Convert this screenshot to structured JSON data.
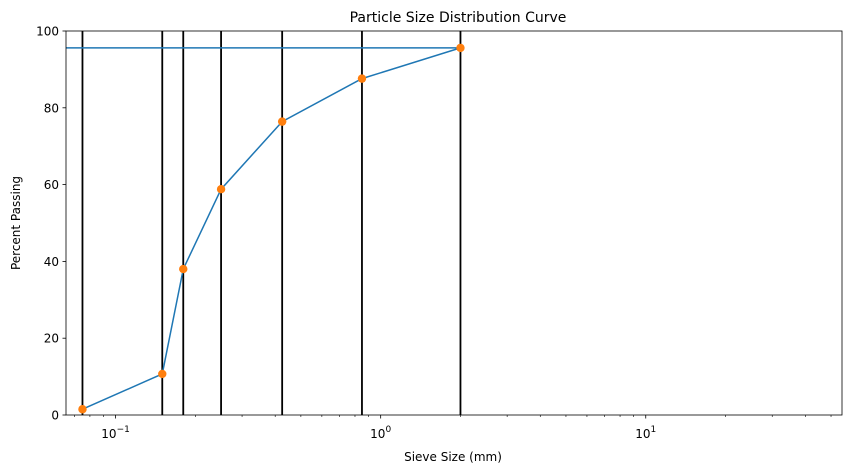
{
  "chart_data": {
    "type": "line",
    "title": "Particle Size Distribution Curve",
    "xlabel": "Sieve Size (mm)",
    "ylabel": "Percent Passing",
    "xscale": "log",
    "xlim": [
      0.065,
      55
    ],
    "ylim": [
      0,
      100
    ],
    "x_ticks": [
      {
        "value": 0.1,
        "base": "10",
        "exp": "−1"
      },
      {
        "value": 1,
        "base": "10",
        "exp": "0"
      },
      {
        "value": 10,
        "base": "10",
        "exp": "1"
      }
    ],
    "y_ticks": [
      0,
      20,
      40,
      60,
      80,
      100
    ],
    "grid": false,
    "series": [
      {
        "x": [
          0.075,
          0.15,
          0.18,
          0.25,
          0.425,
          0.85,
          2.0
        ],
        "y": [
          1.5,
          10.7,
          38.0,
          58.8,
          76.4,
          87.6,
          95.6
        ],
        "line_color": "#1f77b4",
        "marker_color": "#ff7f0e"
      }
    ],
    "vertical_lines": {
      "x": [
        0.075,
        0.15,
        0.18,
        0.25,
        0.425,
        0.85,
        2.0
      ],
      "color": "#000000"
    },
    "horizontal_line": {
      "y": 95.6,
      "x_end": 2.0,
      "color": "#1f77b4"
    }
  }
}
